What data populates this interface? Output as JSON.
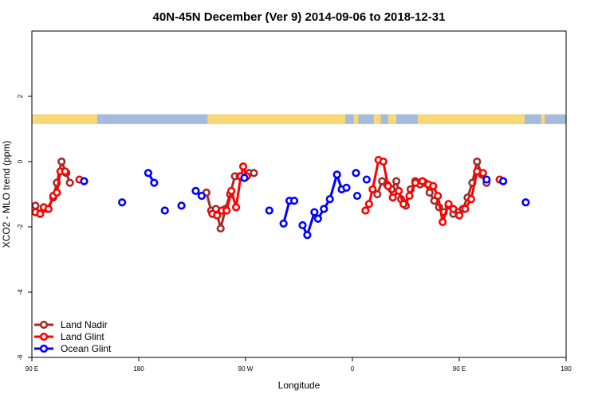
{
  "chart_data": {
    "type": "line",
    "title": "40N-45N December (Ver 9)   2014-09-06 to 2018-12-31",
    "xlabel": "Longitude",
    "ylabel": "XCO2 - MLO trend (ppm)",
    "xlim": [
      90,
      540
    ],
    "ylim": [
      -6,
      4
    ],
    "x_ticks": [
      {
        "value": 90,
        "label": "90 E"
      },
      {
        "value": 180,
        "label": "180"
      },
      {
        "value": 270,
        "label": "90 W"
      },
      {
        "value": 360,
        "label": "0"
      },
      {
        "value": 450,
        "label": "90 E"
      },
      {
        "value": 540,
        "label": "180"
      }
    ],
    "y_ticks": [
      {
        "value": -6,
        "label": "-6"
      },
      {
        "value": -4,
        "label": "-4"
      },
      {
        "value": -2,
        "label": "-2"
      },
      {
        "value": 0,
        "label": "0"
      },
      {
        "value": 2,
        "label": "2"
      }
    ],
    "land_ocean_strip": {
      "y_range": [
        1.15,
        1.45
      ],
      "ocean_color": "#a4bbdc",
      "land_color": "#f9d878",
      "land_segments": [
        [
          90,
          145
        ],
        [
          238,
          354
        ],
        [
          361,
          365
        ],
        [
          378,
          384
        ],
        [
          390,
          397
        ],
        [
          415,
          505
        ],
        [
          519,
          522
        ]
      ]
    },
    "series": [
      {
        "name": "Land Nadir",
        "color": "#a52a2a",
        "segments": [
          [
            [
              93,
              -1.35
            ],
            [
              97,
              -1.6
            ],
            [
              103,
              -1.45
            ],
            [
              108,
              -1.1
            ],
            [
              111,
              -0.65
            ],
            [
              115,
              0.0
            ],
            [
              119,
              -0.35
            ],
            [
              122,
              -0.65
            ]
          ],
          [
            [
              237,
              -0.95
            ],
            [
              241,
              -1.5
            ],
            [
              245,
              -1.45
            ],
            [
              249,
              -2.05
            ],
            [
              253,
              -1.45
            ],
            [
              257,
              -1.0
            ],
            [
              261,
              -0.45
            ],
            [
              265,
              -0.45
            ],
            [
              269,
              -0.5
            ],
            [
              273,
              -0.35
            ],
            [
              277,
              -0.35
            ]
          ],
          [
            [
              381,
              -1.0
            ],
            [
              385,
              -0.6
            ],
            [
              389,
              -0.7
            ],
            [
              393,
              -0.85
            ],
            [
              397,
              -0.6
            ],
            [
              401,
              -1.15
            ],
            [
              405,
              -1.35
            ],
            [
              409,
              -0.85
            ],
            [
              413,
              -0.6
            ],
            [
              417,
              -0.7
            ],
            [
              421,
              -0.65
            ],
            [
              425,
              -0.95
            ],
            [
              429,
              -1.2
            ],
            [
              433,
              -1.4
            ],
            [
              437,
              -1.55
            ],
            [
              441,
              -1.35
            ],
            [
              445,
              -1.6
            ],
            [
              449,
              -1.55
            ],
            [
              453,
              -1.45
            ],
            [
              457,
              -1.1
            ],
            [
              461,
              -0.65
            ],
            [
              465,
              0.0
            ],
            [
              469,
              -0.4
            ],
            [
              473,
              -0.65
            ]
          ]
        ]
      },
      {
        "name": "Land Glint",
        "color": "#ff0000",
        "segments": [
          [
            [
              93,
              -1.55
            ],
            [
              97,
              -1.6
            ],
            [
              100,
              -1.4
            ],
            [
              104,
              -1.45
            ],
            [
              108,
              -1.05
            ],
            [
              111,
              -0.95
            ],
            [
              114,
              -0.3
            ],
            [
              118,
              -0.3
            ]
          ],
          [
            [
              130,
              -0.55
            ]
          ],
          [
            [
              242,
              -1.6
            ],
            [
              246,
              -1.65
            ],
            [
              250,
              -1.5
            ],
            [
              254,
              -1.5
            ],
            [
              258,
              -0.9
            ],
            [
              262,
              -1.4
            ],
            [
              266,
              -0.45
            ],
            [
              268,
              -0.15
            ],
            [
              271,
              -0.45
            ]
          ],
          [
            [
              371,
              -1.5
            ],
            [
              374,
              -1.3
            ],
            [
              377,
              -0.85
            ],
            [
              382,
              0.05
            ],
            [
              386,
              0.0
            ],
            [
              390,
              -0.75
            ],
            [
              394,
              -1.1
            ],
            [
              399,
              -0.9
            ],
            [
              403,
              -1.3
            ],
            [
              408,
              -1.05
            ],
            [
              413,
              -0.65
            ],
            [
              419,
              -0.6
            ],
            [
              424,
              -0.7
            ],
            [
              428,
              -0.75
            ],
            [
              432,
              -1.05
            ],
            [
              436,
              -1.85
            ],
            [
              441,
              -1.3
            ],
            [
              445,
              -1.45
            ],
            [
              450,
              -1.65
            ],
            [
              455,
              -1.45
            ],
            [
              460,
              -1.15
            ],
            [
              465,
              -0.3
            ],
            [
              470,
              -0.35
            ]
          ],
          [
            [
              484,
              -0.55
            ]
          ]
        ]
      },
      {
        "name": "Ocean Glint",
        "color": "#0000ff",
        "segments": [
          [
            [
              134,
              -0.6
            ]
          ],
          [
            [
              166,
              -1.25
            ]
          ],
          [
            [
              188,
              -0.35
            ],
            [
              193,
              -0.65
            ]
          ],
          [
            [
              202,
              -1.5
            ]
          ],
          [
            [
              216,
              -1.35
            ]
          ],
          [
            [
              228,
              -0.9
            ],
            [
              233,
              -1.05
            ]
          ],
          [
            [
              269,
              -0.5
            ]
          ],
          [
            [
              290,
              -1.5
            ]
          ],
          [
            [
              302,
              -1.9
            ],
            [
              307,
              -1.2
            ],
            [
              311,
              -1.2
            ]
          ],
          [
            [
              318,
              -1.95
            ],
            [
              322,
              -2.25
            ],
            [
              328,
              -1.55
            ],
            [
              331,
              -1.75
            ],
            [
              336,
              -1.45
            ],
            [
              341,
              -1.15
            ],
            [
              347,
              -0.4
            ],
            [
              351,
              -0.85
            ],
            [
              355,
              -0.8
            ]
          ],
          [
            [
              363,
              -0.35
            ]
          ],
          [
            [
              364,
              -1.05
            ]
          ],
          [
            [
              372,
              -0.55
            ]
          ],
          [
            [
              473,
              -0.55
            ]
          ],
          [
            [
              487,
              -0.6
            ]
          ],
          [
            [
              506,
              -1.25
            ]
          ]
        ]
      }
    ],
    "legend": {
      "position": "bottom-left",
      "entries": [
        "Land Nadir",
        "Land Glint",
        "Ocean Glint"
      ]
    }
  }
}
